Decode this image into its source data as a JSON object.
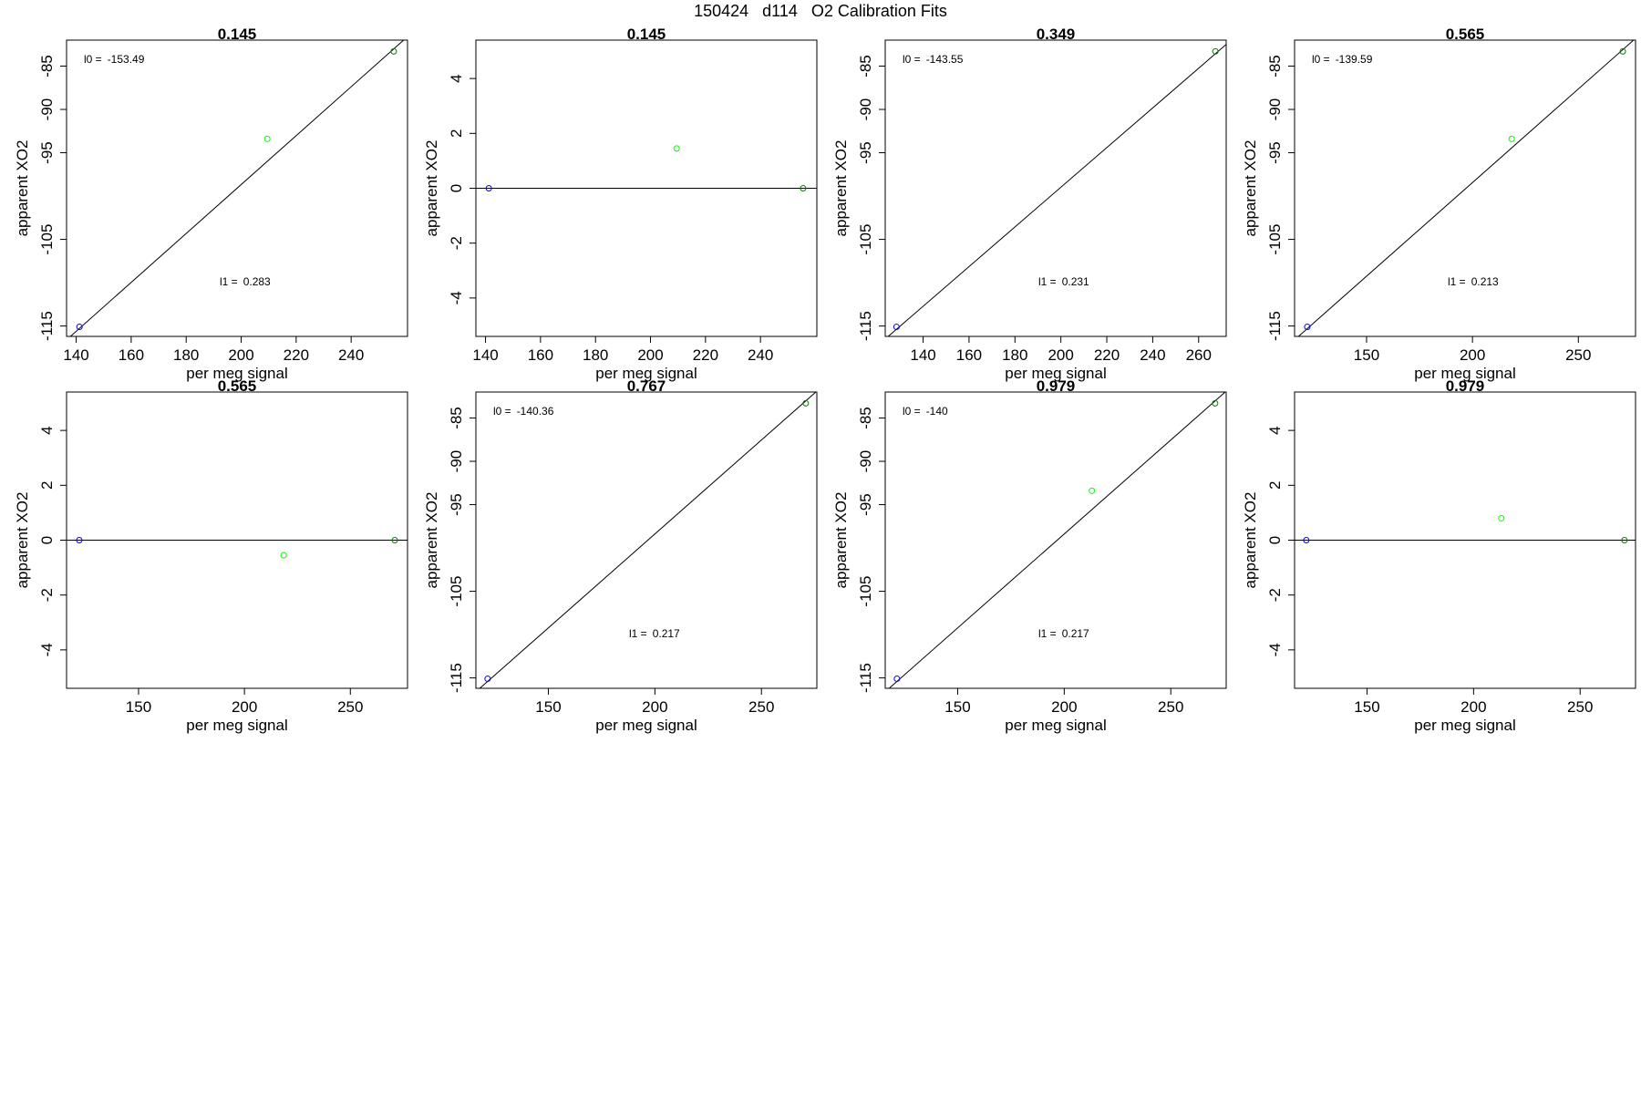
{
  "suptitle": "150424   d114   O2 Calibration Fits",
  "colors": {
    "axis": "#000000",
    "fit_line": "#000000",
    "point_low": "#0000ff",
    "point_mid": "#00ff00",
    "point_high": "#008000"
  },
  "chart_data": [
    {
      "type": "scatter",
      "title": "0.145",
      "xlabel": "per meg signal",
      "ylabel": "apparent XO2",
      "xlim": [
        136.5,
        260.5
      ],
      "ylim": [
        -116.2,
        -82.0
      ],
      "xticks": [
        140,
        160,
        180,
        200,
        220,
        240
      ],
      "yticks": [
        -115,
        -105,
        -95,
        -90,
        -85
      ],
      "points": [
        {
          "x": 141.2,
          "y": -115.1
        },
        {
          "x": 209.5,
          "y": -93.4
        },
        {
          "x": 255.5,
          "y": -83.3
        }
      ],
      "fit_line": {
        "x": [
          136.5,
          260.5
        ],
        "y": [
          -116.6,
          -81.6
        ]
      },
      "annotations": [
        {
          "label": "l0 =",
          "value": "-153.49",
          "pos": "top-left"
        },
        {
          "label": "l1 =",
          "value": "0.283",
          "pos": "lower-middle"
        }
      ]
    },
    {
      "type": "scatter",
      "title": "0.145",
      "xlabel": "per meg signal",
      "ylabel": "apparent XO2",
      "xlim": [
        136.5,
        260.5
      ],
      "ylim": [
        -5.4,
        5.4
      ],
      "xticks": [
        140,
        160,
        180,
        200,
        220,
        240
      ],
      "yticks": [
        -4,
        -2,
        0,
        2,
        4
      ],
      "points": [
        {
          "x": 141.2,
          "y": 0.0
        },
        {
          "x": 209.5,
          "y": 1.45
        },
        {
          "x": 255.5,
          "y": 0.0
        }
      ],
      "fit_line": {
        "x": [
          136.5,
          260.5
        ],
        "y": [
          0,
          0
        ]
      },
      "annotations": []
    },
    {
      "type": "scatter",
      "title": "0.349",
      "xlabel": "per meg signal",
      "ylabel": "apparent XO2",
      "xlim": [
        123.5,
        272.0
      ],
      "ylim": [
        -116.2,
        -82.0
      ],
      "xticks": [
        140,
        160,
        180,
        200,
        220,
        240,
        260
      ],
      "yticks": [
        -115,
        -105,
        -95,
        -90,
        -85
      ],
      "points": [
        {
          "x": 128.4,
          "y": -115.1
        },
        {
          "x": 267.3,
          "y": -83.3
        }
      ],
      "fit_line": {
        "x": [
          123.5,
          272.0
        ],
        "y": [
          -116.5,
          -82.5
        ]
      },
      "annotations": [
        {
          "label": "l0 =",
          "value": "-143.55",
          "pos": "top-left"
        },
        {
          "label": "l1 =",
          "value": "0.231",
          "pos": "lower-middle"
        }
      ]
    },
    {
      "type": "scatter",
      "title": "0.565",
      "xlabel": "per meg signal",
      "ylabel": "apparent XO2",
      "xlim": [
        116.0,
        277.0
      ],
      "ylim": [
        -116.2,
        -82.0
      ],
      "xticks": [
        150,
        200,
        250
      ],
      "yticks": [
        -115,
        -105,
        -95,
        -90,
        -85
      ],
      "points": [
        {
          "x": 122.0,
          "y": -115.1
        },
        {
          "x": 218.5,
          "y": -93.4
        },
        {
          "x": 271.0,
          "y": -83.3
        }
      ],
      "fit_line": {
        "x": [
          116.0,
          277.0
        ],
        "y": [
          -116.6,
          -81.8
        ]
      },
      "annotations": [
        {
          "label": "l0 =",
          "value": "-139.59",
          "pos": "top-left"
        },
        {
          "label": "l1 =",
          "value": "0.213",
          "pos": "lower-middle"
        }
      ]
    },
    {
      "type": "scatter",
      "title": "0.565",
      "xlabel": "per meg signal",
      "ylabel": "apparent XO2",
      "xlim": [
        116.0,
        277.0
      ],
      "ylim": [
        -5.4,
        5.4
      ],
      "xticks": [
        150,
        200,
        250
      ],
      "yticks": [
        -4,
        -2,
        0,
        2,
        4
      ],
      "points": [
        {
          "x": 122.0,
          "y": 0.0
        },
        {
          "x": 218.5,
          "y": -0.55
        },
        {
          "x": 271.0,
          "y": 0.0
        }
      ],
      "fit_line": {
        "x": [
          116.0,
          277.0
        ],
        "y": [
          0,
          0
        ]
      },
      "annotations": []
    },
    {
      "type": "scatter",
      "title": "0.767",
      "xlabel": "per meg signal",
      "ylabel": "apparent XO2",
      "xlim": [
        116.0,
        276.0
      ],
      "ylim": [
        -116.2,
        -82.0
      ],
      "xticks": [
        150,
        200,
        250
      ],
      "yticks": [
        -115,
        -105,
        -95,
        -90,
        -85
      ],
      "points": [
        {
          "x": 121.5,
          "y": -115.1
        },
        {
          "x": 270.8,
          "y": -83.3
        }
      ],
      "fit_line": {
        "x": [
          116.0,
          276.0
        ],
        "y": [
          -116.6,
          -81.9
        ]
      },
      "annotations": [
        {
          "label": "l0 =",
          "value": "-140.36",
          "pos": "top-left"
        },
        {
          "label": "l1 =",
          "value": "0.217",
          "pos": "lower-middle"
        }
      ]
    },
    {
      "type": "scatter",
      "title": "0.979",
      "xlabel": "per meg signal",
      "ylabel": "apparent XO2",
      "xlim": [
        116.0,
        276.0
      ],
      "ylim": [
        -116.2,
        -82.0
      ],
      "xticks": [
        150,
        200,
        250
      ],
      "yticks": [
        -115,
        -105,
        -95,
        -90,
        -85
      ],
      "points": [
        {
          "x": 121.5,
          "y": -115.1
        },
        {
          "x": 213.0,
          "y": -93.4
        },
        {
          "x": 270.8,
          "y": -83.3
        }
      ],
      "fit_line": {
        "x": [
          116.0,
          276.0
        ],
        "y": [
          -116.6,
          -81.9
        ]
      },
      "annotations": [
        {
          "label": "l0 =",
          "value": "-140",
          "pos": "top-left"
        },
        {
          "label": "l1 =",
          "value": "0.217",
          "pos": "lower-middle"
        }
      ]
    },
    {
      "type": "scatter",
      "title": "0.979",
      "xlabel": "per meg signal",
      "ylabel": "apparent XO2",
      "xlim": [
        116.0,
        276.0
      ],
      "ylim": [
        -5.4,
        5.4
      ],
      "xticks": [
        150,
        200,
        250
      ],
      "yticks": [
        -4,
        -2,
        0,
        2,
        4
      ],
      "points": [
        {
          "x": 121.5,
          "y": 0.0
        },
        {
          "x": 213.0,
          "y": 0.8
        },
        {
          "x": 270.8,
          "y": 0.0
        }
      ],
      "fit_line": {
        "x": [
          116.0,
          276.0
        ],
        "y": [
          0,
          0
        ]
      },
      "annotations": []
    }
  ]
}
